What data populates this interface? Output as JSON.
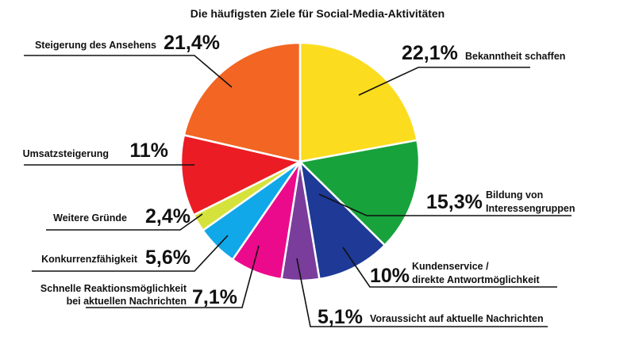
{
  "chart_data": {
    "type": "pie",
    "title": "Die häufigsten Ziele für Social-Media-Aktivitäten",
    "slices": [
      {
        "label": "Bekanntheit schaffen",
        "value": 22.1,
        "value_label": "22,1%",
        "color": "#fcdc1e"
      },
      {
        "label": "Bildung von Interessengruppen",
        "value": 15.3,
        "value_label": "15,3%",
        "color": "#18a23c"
      },
      {
        "label": "Kundenservice / direkte Antwortmöglichkeit",
        "value": 10,
        "value_label": "10%",
        "color": "#1e3a96"
      },
      {
        "label": "Voraussicht auf aktuelle Nachrichten",
        "value": 5.1,
        "value_label": "5,1%",
        "color": "#7a3d9c"
      },
      {
        "label": "Schnelle Reaktionsmöglichkeit bei aktuellen Nachrichten",
        "value": 7.1,
        "value_label": "7,1%",
        "color": "#ec0a8c"
      },
      {
        "label": "Konkurrenzfähigkeit",
        "value": 5.6,
        "value_label": "5,6%",
        "color": "#10a8e8"
      },
      {
        "label": "Weitere Gründe",
        "value": 2.4,
        "value_label": "2,4%",
        "color": "#d6e23c"
      },
      {
        "label": "Umsatzsteigerung",
        "value": 11,
        "value_label": "11%",
        "color": "#ec1c24"
      },
      {
        "label": "Steigerung des Ansehens",
        "value": 21.4,
        "value_label": "21,4%",
        "color": "#f26522"
      }
    ],
    "legend": "none"
  }
}
